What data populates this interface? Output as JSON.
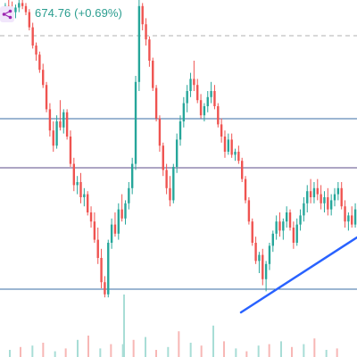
{
  "header": {
    "price_change_text": "674.76 (+0.69%)",
    "share_icon": "share-icon"
  },
  "colors": {
    "up": "#26a69a",
    "down": "#ef5350",
    "up_volume": "#a8ddd6",
    "down_volume": "#f7b7b5",
    "hline_blue": "#3a6ea5",
    "hline_purple": "#5b4b8a",
    "dashed": "#b0b0b0",
    "trendline": "#2962ff",
    "change_text": "#2a9d8f"
  },
  "chart_data": {
    "type": "candlestick",
    "y_domain": [
      0,
      100
    ],
    "candles": [
      [
        97,
        99,
        95.5,
        98
      ],
      [
        98,
        100,
        96,
        97
      ],
      [
        97,
        99.5,
        95,
        96
      ],
      [
        96,
        98.5,
        94,
        97.5
      ],
      [
        97.5,
        100,
        96,
        99
      ],
      [
        99,
        100.5,
        97,
        98
      ],
      [
        98,
        99,
        95,
        96
      ],
      [
        96,
        97,
        90,
        91
      ],
      [
        91,
        92.5,
        84,
        85
      ],
      [
        85,
        86,
        80,
        82
      ],
      [
        82,
        83,
        76,
        77
      ],
      [
        77,
        79,
        71,
        72
      ],
      [
        72,
        73,
        63,
        64
      ],
      [
        64,
        66,
        55,
        57
      ],
      [
        57,
        60,
        50,
        52
      ],
      [
        52,
        62,
        51,
        60
      ],
      [
        60,
        67,
        57,
        58
      ],
      [
        58,
        64,
        56,
        63
      ],
      [
        63,
        64,
        54,
        55
      ],
      [
        55,
        57,
        45,
        46
      ],
      [
        46,
        48,
        37,
        39
      ],
      [
        39,
        42,
        36,
        40
      ],
      [
        40,
        43,
        33,
        35
      ],
      [
        35,
        38,
        32,
        36
      ],
      [
        36,
        37,
        29,
        30
      ],
      [
        30,
        32,
        25,
        27
      ],
      [
        27,
        30,
        20,
        21
      ],
      [
        21,
        25,
        13,
        15
      ],
      [
        15,
        18,
        5,
        7
      ],
      [
        7,
        9,
        2,
        3
      ],
      [
        3,
        21,
        2,
        20
      ],
      [
        20,
        28,
        18,
        26
      ],
      [
        26,
        30,
        22,
        23
      ],
      [
        23,
        33,
        21,
        31
      ],
      [
        31,
        36,
        27,
        28
      ],
      [
        28,
        34,
        26,
        33
      ],
      [
        33,
        40,
        31,
        38
      ],
      [
        38,
        48,
        36,
        46
      ],
      [
        46,
        75,
        44,
        73
      ],
      [
        73,
        100,
        70,
        98
      ],
      [
        98,
        99,
        90,
        92
      ],
      [
        92,
        94,
        85,
        87
      ],
      [
        87,
        88,
        78,
        80
      ],
      [
        80,
        81,
        70,
        71
      ],
      [
        71,
        72,
        60,
        61
      ],
      [
        61,
        62,
        50,
        52
      ],
      [
        52,
        53,
        42,
        44
      ],
      [
        44,
        46,
        36,
        38
      ],
      [
        38,
        42,
        32,
        34
      ],
      [
        34,
        46,
        33,
        45
      ],
      [
        45,
        56,
        43,
        54
      ],
      [
        54,
        62,
        52,
        60
      ],
      [
        60,
        68,
        58,
        66
      ],
      [
        66,
        72,
        63,
        70
      ],
      [
        70,
        76,
        68,
        74
      ],
      [
        74,
        80,
        70,
        72
      ],
      [
        72,
        74,
        66,
        67
      ],
      [
        67,
        69,
        61,
        62
      ],
      [
        62,
        66,
        60,
        65
      ],
      [
        65,
        70,
        63,
        68
      ],
      [
        68,
        73,
        66,
        70
      ],
      [
        70,
        72,
        64,
        65
      ],
      [
        65,
        66,
        58,
        59
      ],
      [
        59,
        61,
        53,
        55
      ],
      [
        55,
        57,
        48,
        50
      ],
      [
        50,
        56,
        49,
        54
      ],
      [
        54,
        56,
        48,
        49
      ],
      [
        49,
        51,
        47,
        50
      ],
      [
        50,
        52,
        46,
        47
      ],
      [
        47,
        48,
        40,
        41
      ],
      [
        41,
        42,
        33,
        34
      ],
      [
        34,
        35,
        26,
        27
      ],
      [
        27,
        28,
        19,
        20
      ],
      [
        20,
        22,
        13,
        14
      ],
      [
        14,
        17,
        10,
        16
      ],
      [
        16,
        18,
        6,
        8
      ],
      [
        8,
        14,
        4,
        13
      ],
      [
        13,
        20,
        11,
        19
      ],
      [
        19,
        24,
        17,
        23
      ],
      [
        23,
        29,
        21,
        27
      ],
      [
        27,
        30,
        22,
        24
      ],
      [
        24,
        28,
        21,
        27
      ],
      [
        27,
        32,
        25,
        30
      ],
      [
        30,
        31,
        24,
        25
      ],
      [
        25,
        27,
        18,
        20
      ],
      [
        20,
        28,
        19,
        26
      ],
      [
        26,
        31,
        24,
        29
      ],
      [
        29,
        35,
        27,
        33
      ],
      [
        33,
        39,
        30,
        37
      ],
      [
        37,
        41,
        33,
        35
      ],
      [
        35,
        40,
        33,
        38
      ],
      [
        38,
        41,
        34,
        36
      ],
      [
        36,
        39,
        31,
        33
      ],
      [
        33,
        37,
        30,
        35
      ],
      [
        35,
        38,
        29,
        31
      ],
      [
        31,
        36,
        29,
        34
      ],
      [
        34,
        38,
        32,
        36
      ],
      [
        36,
        40,
        34,
        38
      ],
      [
        38,
        40,
        31,
        32
      ],
      [
        32,
        34,
        25,
        27
      ],
      [
        27,
        30,
        24,
        29
      ],
      [
        29,
        32,
        25,
        26
      ],
      [
        26,
        33,
        25,
        31
      ]
    ],
    "volume_up": [
      5,
      8,
      4,
      12,
      6,
      9,
      14,
      7,
      10,
      22,
      6,
      8,
      11,
      9,
      5
    ],
    "volume_down": [
      7,
      10,
      6,
      15,
      9,
      12,
      5,
      18,
      8,
      11,
      4,
      9,
      7,
      13,
      6
    ]
  }
}
